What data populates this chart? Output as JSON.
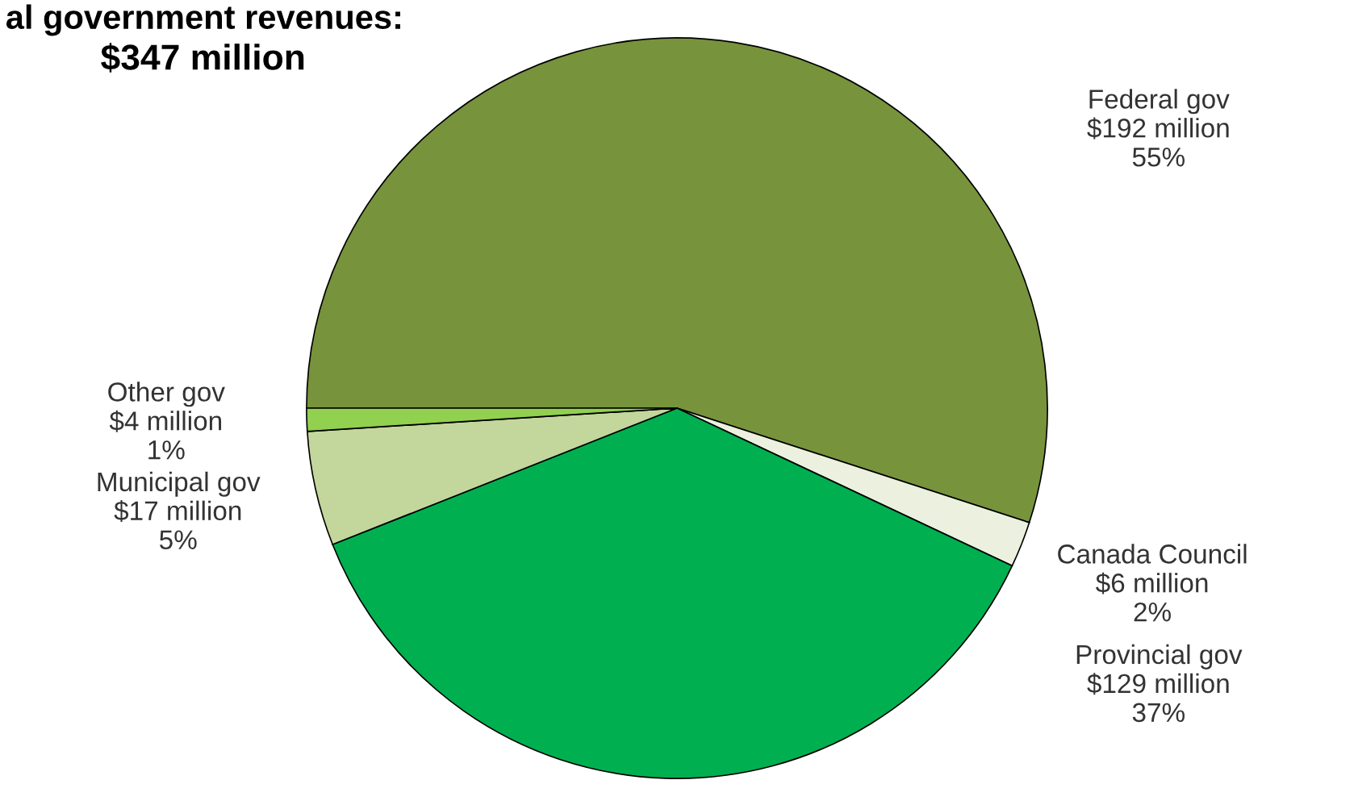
{
  "chart_data": {
    "type": "pie",
    "title": "al government revenues:",
    "subtitle": "$347 million",
    "categories": [
      "Federal gov",
      "Canada Council",
      "Provincial gov",
      "Municipal gov",
      "Other gov"
    ],
    "values": [
      55,
      2,
      37,
      5,
      1
    ],
    "value_labels": [
      "$192 million\n55%",
      "$6 million\n2%",
      "$129 million\n37%",
      "$17 million\n5%",
      "$4 million\n1%"
    ],
    "colors": [
      "#77933c",
      "#ebf1de",
      "#00b050",
      "#c3d69b",
      "#92d050"
    ]
  }
}
